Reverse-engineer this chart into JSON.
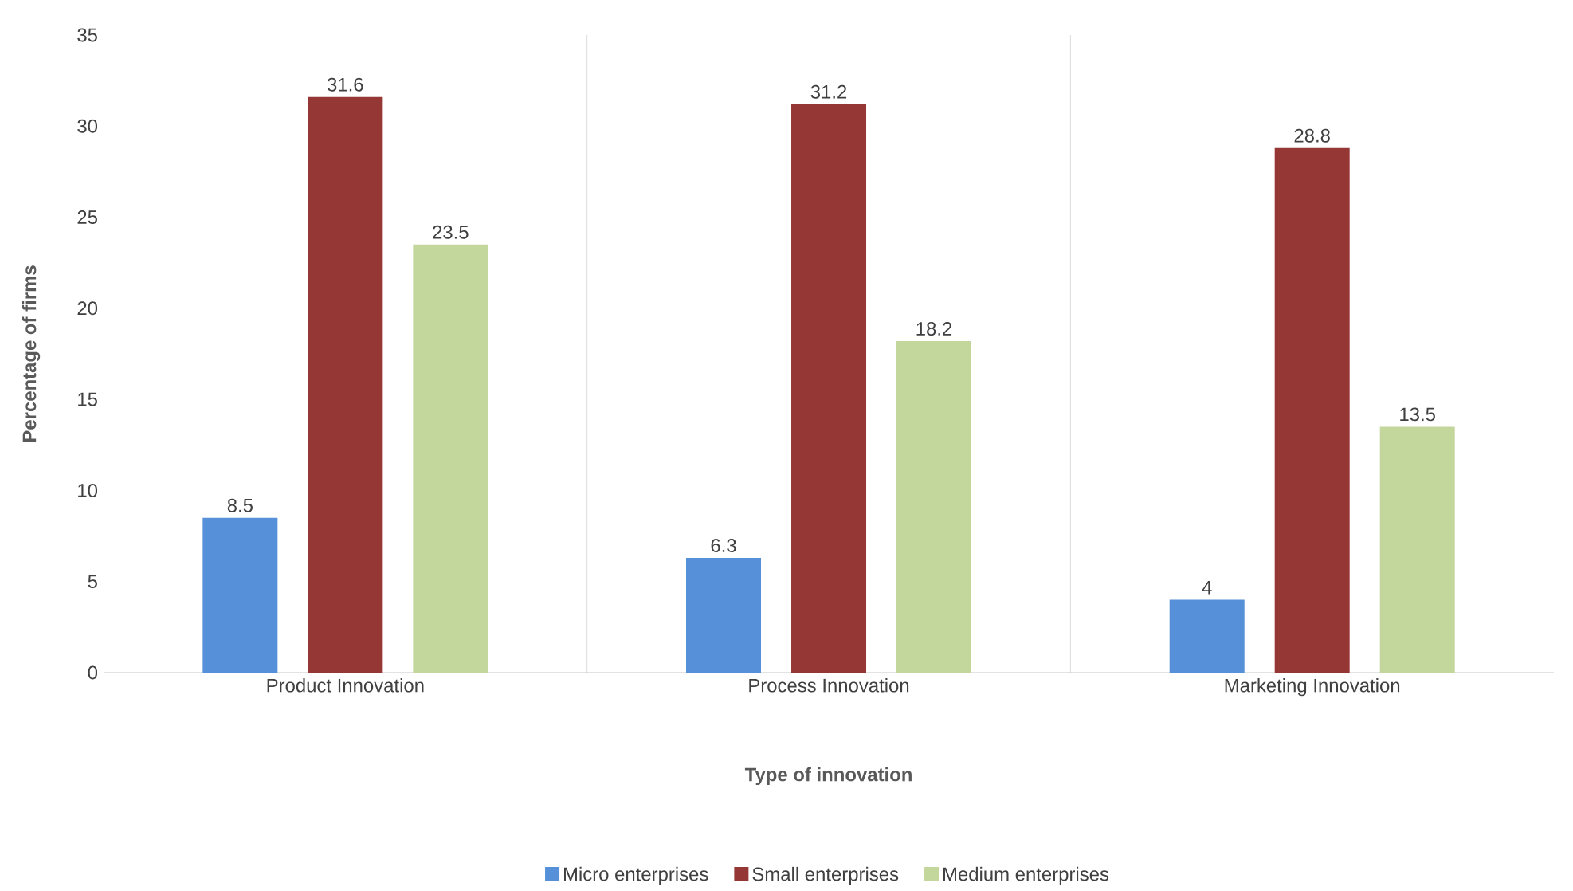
{
  "chart_data": {
    "type": "bar",
    "xlabel": "Type of innovation",
    "ylabel": "Percentage of firms",
    "categories": [
      "Product Innovation",
      "Process Innovation",
      "Marketing Innovation"
    ],
    "series": [
      {
        "name": "Micro enterprises",
        "color": "#5590d8",
        "values": [
          8.5,
          6.3,
          4
        ]
      },
      {
        "name": "Small enterprises",
        "color": "#953735",
        "values": [
          31.6,
          31.2,
          28.8
        ]
      },
      {
        "name": "Medium enterprises",
        "color": "#c3d69b",
        "values": [
          23.5,
          18.2,
          13.5
        ]
      }
    ],
    "ylim": [
      0,
      35
    ],
    "yticks": [
      0,
      5,
      10,
      15,
      20,
      25,
      30,
      35
    ],
    "grid": "x",
    "legend": "bottom",
    "data_labels": true
  }
}
